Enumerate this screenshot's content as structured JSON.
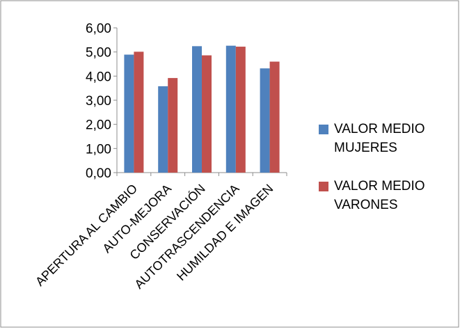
{
  "chart_data": {
    "type": "bar",
    "categories": [
      "APERTURA AL CAMBIO",
      "AUTO-MEJORA",
      "CONSERVACIÓN",
      "AUTOTRASCENDENCIA",
      "HUMILDAD E IMAGEN"
    ],
    "series": [
      {
        "name": "VALOR MEDIO MUJERES",
        "color": "#4F81BD",
        "values": [
          4.89,
          3.58,
          5.24,
          5.26,
          4.32
        ]
      },
      {
        "name": "VALOR MEDIO VARONES",
        "color": "#C0504D",
        "values": [
          5.01,
          3.92,
          4.86,
          5.22,
          4.6
        ]
      }
    ],
    "yticks": [
      "0,00",
      "1,00",
      "2,00",
      "3,00",
      "4,00",
      "5,00",
      "6,00"
    ],
    "ylim": [
      0,
      6
    ],
    "legend": "right",
    "grid": false
  }
}
